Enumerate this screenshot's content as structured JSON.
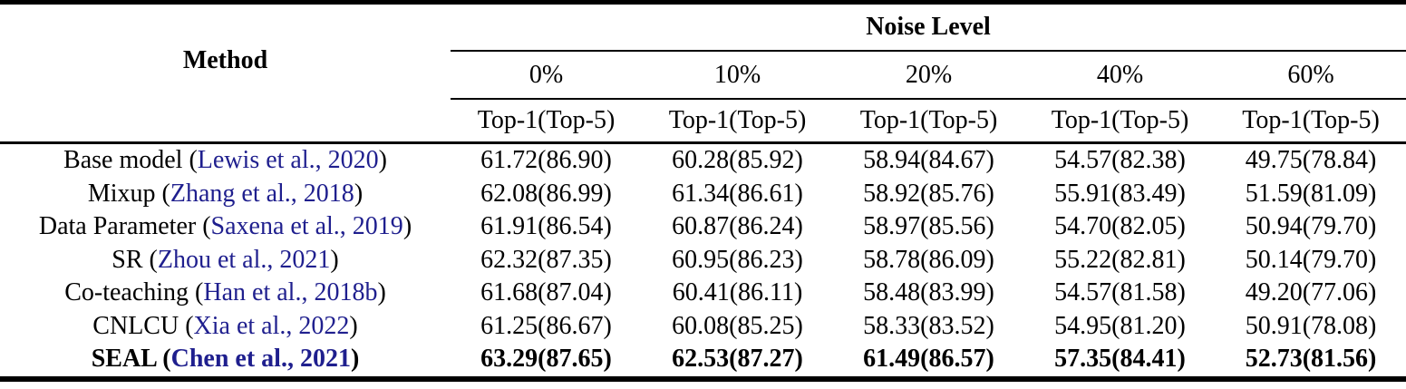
{
  "table": {
    "method_header": "Method",
    "group_header": "Noise Level",
    "noise_levels": [
      "0%",
      "10%",
      "20%",
      "40%",
      "60%"
    ],
    "subheader": "Top-1(Top-5)",
    "citation_color": "#1f1f8e",
    "rows": [
      {
        "method": "Base model",
        "citation": "Lewis et al., 2020",
        "bold": false,
        "values": [
          "61.72(86.90)",
          "60.28(85.92)",
          "58.94(84.67)",
          "54.57(82.38)",
          "49.75(78.84)"
        ]
      },
      {
        "method": "Mixup",
        "citation": "Zhang et al., 2018",
        "bold": false,
        "values": [
          "62.08(86.99)",
          "61.34(86.61)",
          "58.92(85.76)",
          "55.91(83.49)",
          "51.59(81.09)"
        ]
      },
      {
        "method": "Data Parameter",
        "citation": "Saxena et al., 2019",
        "bold": false,
        "values": [
          "61.91(86.54)",
          "60.87(86.24)",
          "58.97(85.56)",
          "54.70(82.05)",
          "50.94(79.70)"
        ]
      },
      {
        "method": "SR",
        "citation": "Zhou et al., 2021",
        "bold": false,
        "values": [
          "62.32(87.35)",
          "60.95(86.23)",
          "58.78(86.09)",
          "55.22(82.81)",
          "50.14(79.70)"
        ]
      },
      {
        "method": "Co-teaching",
        "citation": "Han et al., 2018b",
        "bold": false,
        "values": [
          "61.68(87.04)",
          "60.41(86.11)",
          "58.48(83.99)",
          "54.57(81.58)",
          "49.20(77.06)"
        ]
      },
      {
        "method": "CNLCU",
        "citation": "Xia et al., 2022",
        "bold": false,
        "values": [
          "61.25(86.67)",
          "60.08(85.25)",
          "58.33(83.52)",
          "54.95(81.20)",
          "50.91(78.08)"
        ]
      },
      {
        "method": "SEAL",
        "citation": "Chen et al., 2021",
        "bold": true,
        "values": [
          "63.29(87.65)",
          "62.53(87.27)",
          "61.49(86.57)",
          "57.35(84.41)",
          "52.73(81.56)"
        ]
      }
    ]
  },
  "chart_data": {
    "type": "table",
    "title": "Noise Level",
    "columns": [
      "Method",
      "0% Top-1(Top-5)",
      "10% Top-1(Top-5)",
      "20% Top-1(Top-5)",
      "40% Top-1(Top-5)",
      "60% Top-1(Top-5)"
    ],
    "rows": [
      [
        "Base model (Lewis et al., 2020)",
        "61.72(86.90)",
        "60.28(85.92)",
        "58.94(84.67)",
        "54.57(82.38)",
        "49.75(78.84)"
      ],
      [
        "Mixup (Zhang et al., 2018)",
        "62.08(86.99)",
        "61.34(86.61)",
        "58.92(85.76)",
        "55.91(83.49)",
        "51.59(81.09)"
      ],
      [
        "Data Parameter (Saxena et al., 2019)",
        "61.91(86.54)",
        "60.87(86.24)",
        "58.97(85.56)",
        "54.70(82.05)",
        "50.94(79.70)"
      ],
      [
        "SR (Zhou et al., 2021)",
        "62.32(87.35)",
        "60.95(86.23)",
        "58.78(86.09)",
        "55.22(82.81)",
        "50.14(79.70)"
      ],
      [
        "Co-teaching (Han et al., 2018b)",
        "61.68(87.04)",
        "60.41(86.11)",
        "58.48(83.99)",
        "54.57(81.58)",
        "49.20(77.06)"
      ],
      [
        "CNLCU (Xia et al., 2022)",
        "61.25(86.67)",
        "60.08(85.25)",
        "58.33(83.52)",
        "54.95(81.20)",
        "50.91(78.08)"
      ],
      [
        "SEAL (Chen et al., 2021)",
        "63.29(87.65)",
        "62.53(87.27)",
        "61.49(86.57)",
        "57.35(84.41)",
        "52.73(81.56)"
      ]
    ],
    "bold_row_index": 6
  }
}
